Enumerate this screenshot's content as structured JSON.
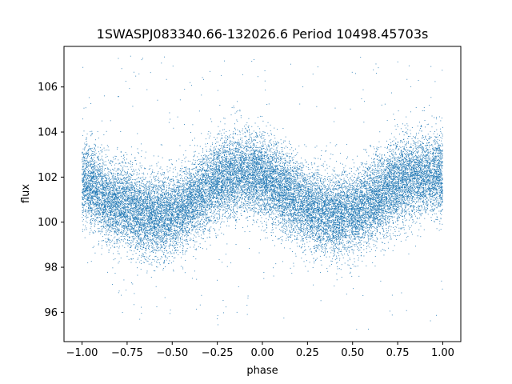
{
  "chart_data": {
    "type": "scatter",
    "title": "1SWASPJ083340.66-132026.6 Period 10498.45703s",
    "xlabel": "phase",
    "ylabel": "flux",
    "xlim": [
      -1.1,
      1.1
    ],
    "ylim": [
      94.7,
      107.8
    ],
    "xticks": [
      -1.0,
      -0.75,
      -0.5,
      -0.25,
      0.0,
      0.25,
      0.5,
      0.75,
      1.0
    ],
    "xtick_labels": [
      "−1.00",
      "−0.75",
      "−0.50",
      "−0.25",
      "0.00",
      "0.25",
      "0.50",
      "0.75",
      "1.00"
    ],
    "yticks": [
      96,
      98,
      100,
      102,
      104,
      106
    ],
    "ytick_labels": [
      "96",
      "98",
      "100",
      "102",
      "104",
      "106"
    ],
    "grid": false,
    "series_color": "#1f77b4",
    "series": [
      {
        "x": [
          -1.0,
          -0.95,
          -0.9,
          -0.85,
          -0.8,
          -0.75,
          -0.7,
          -0.65,
          -0.6,
          -0.55,
          -0.5,
          -0.45,
          -0.4,
          -0.35,
          -0.3,
          -0.25,
          -0.2,
          -0.15,
          -0.1,
          -0.05,
          0.0,
          0.05,
          0.1,
          0.15,
          0.2,
          0.25,
          0.3,
          0.35,
          0.4,
          0.45,
          0.5,
          0.55,
          0.6,
          0.65,
          0.7,
          0.75,
          0.8,
          0.85,
          0.9,
          0.95,
          1.0
        ],
        "y": [
          101.8,
          101.6,
          101.3,
          101.0,
          100.8,
          100.7,
          100.5,
          100.4,
          100.3,
          100.3,
          100.4,
          100.6,
          100.9,
          101.2,
          101.5,
          101.8,
          102.0,
          102.1,
          102.2,
          102.1,
          102.0,
          101.8,
          101.5,
          101.2,
          100.9,
          100.7,
          100.5,
          100.4,
          100.3,
          100.3,
          100.4,
          100.6,
          100.9,
          101.2,
          101.5,
          101.7,
          101.9,
          102.0,
          102.1,
          102.1,
          102.0
        ],
        "scatter_sd": 0.9,
        "n_points": 24000
      }
    ]
  }
}
